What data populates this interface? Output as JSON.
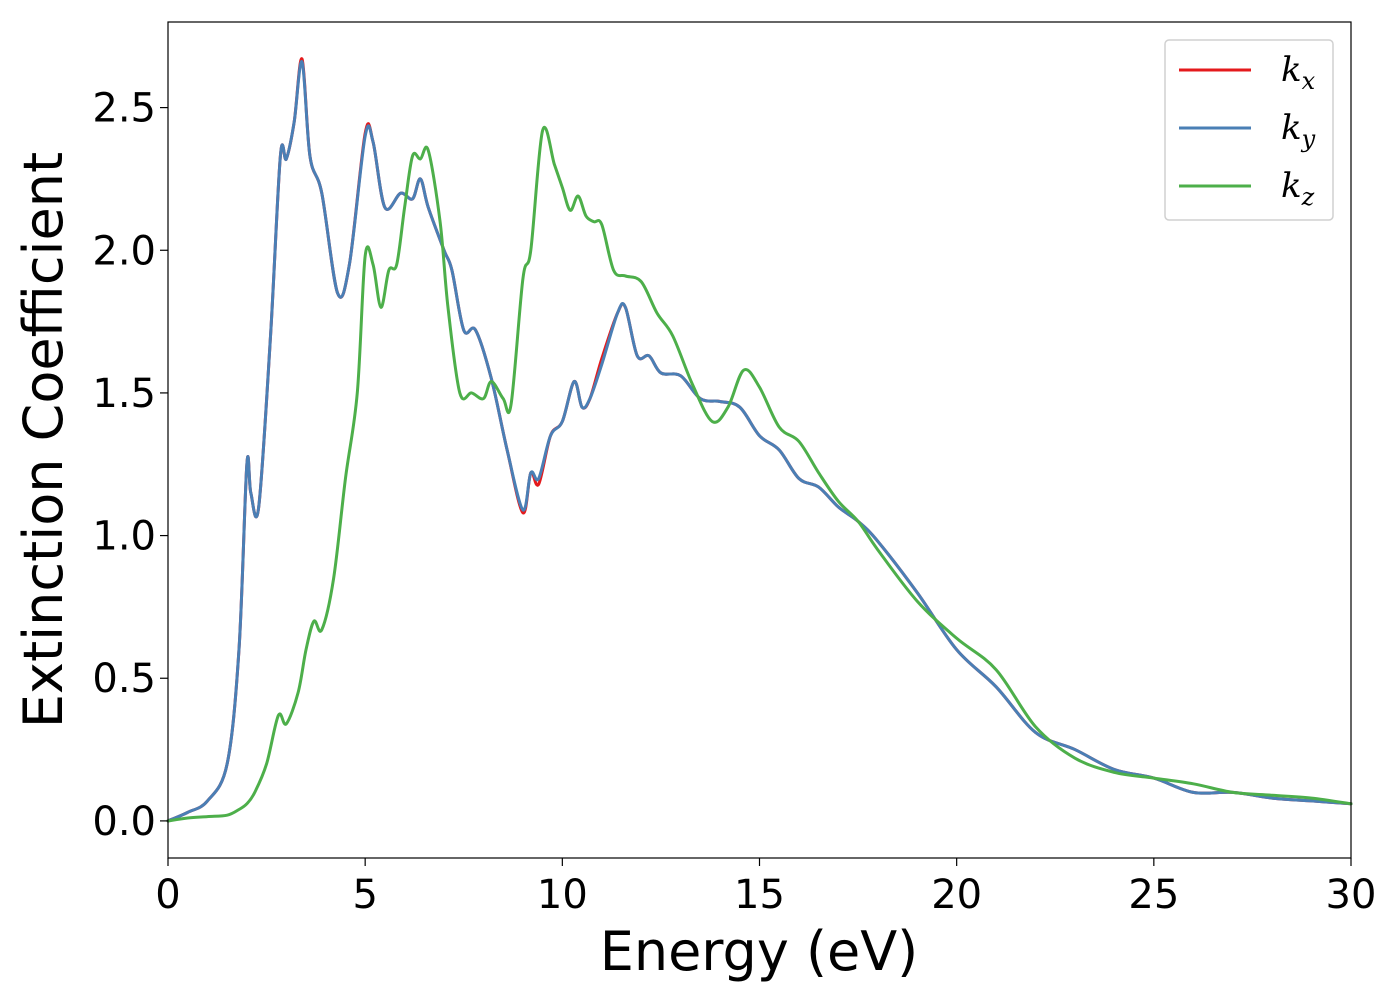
{
  "chart_data": {
    "type": "line",
    "xlabel": "Energy (eV)",
    "ylabel": "Extinction Coefficient",
    "xlim": [
      0,
      30
    ],
    "ylim": [
      -0.13,
      2.8
    ],
    "xticks": [
      0,
      5,
      10,
      15,
      20,
      25,
      30
    ],
    "xtick_labels": [
      "0",
      "5",
      "10",
      "15",
      "20",
      "25",
      "30"
    ],
    "yticks": [
      0.0,
      0.5,
      1.0,
      1.5,
      2.0,
      2.5
    ],
    "ytick_labels": [
      "0.0",
      "0.5",
      "1.0",
      "1.5",
      "2.0",
      "2.5"
    ],
    "grid": false,
    "legend_position": "top-right",
    "series": [
      {
        "name": "k",
        "subscript": "x",
        "color": "#e41a1c",
        "x": [
          0,
          0.5,
          1,
          1.5,
          1.8,
          2.0,
          2.1,
          2.3,
          2.6,
          2.85,
          3.0,
          3.2,
          3.4,
          3.6,
          3.9,
          4.3,
          4.6,
          5.0,
          5.2,
          5.5,
          5.9,
          6.2,
          6.4,
          6.6,
          7.0,
          7.2,
          7.5,
          7.8,
          8.2,
          8.6,
          9.0,
          9.2,
          9.4,
          9.7,
          10.0,
          10.3,
          10.5,
          10.7,
          11.0,
          11.4,
          11.6,
          11.9,
          12.2,
          12.5,
          13.0,
          13.5,
          14.0,
          14.5,
          15.0,
          15.5,
          16.0,
          16.5,
          17.0,
          17.5,
          18.0,
          19.0,
          20.0,
          21.0,
          22.0,
          23.0,
          24.0,
          25.0,
          26.0,
          27.0,
          28.0,
          29.0,
          30.0
        ],
        "y": [
          0.0,
          0.03,
          0.07,
          0.2,
          0.6,
          1.25,
          1.15,
          1.1,
          1.7,
          2.33,
          2.32,
          2.45,
          2.67,
          2.33,
          2.2,
          1.85,
          1.95,
          2.41,
          2.38,
          2.15,
          2.2,
          2.18,
          2.25,
          2.15,
          2.0,
          1.93,
          1.72,
          1.72,
          1.55,
          1.3,
          1.08,
          1.22,
          1.18,
          1.35,
          1.4,
          1.54,
          1.45,
          1.48,
          1.62,
          1.78,
          1.8,
          1.63,
          1.63,
          1.57,
          1.56,
          1.48,
          1.47,
          1.45,
          1.35,
          1.3,
          1.2,
          1.17,
          1.1,
          1.05,
          0.98,
          0.8,
          0.6,
          0.47,
          0.31,
          0.25,
          0.18,
          0.15,
          0.1,
          0.1,
          0.08,
          0.07,
          0.06
        ]
      },
      {
        "name": "k",
        "subscript": "y",
        "color": "#4a7fb5",
        "x": [
          0,
          0.5,
          1,
          1.5,
          1.8,
          2.0,
          2.1,
          2.3,
          2.6,
          2.85,
          3.0,
          3.2,
          3.4,
          3.6,
          3.9,
          4.3,
          4.6,
          5.0,
          5.2,
          5.5,
          5.9,
          6.2,
          6.4,
          6.6,
          7.0,
          7.2,
          7.5,
          7.8,
          8.2,
          8.6,
          9.0,
          9.2,
          9.4,
          9.7,
          10.0,
          10.3,
          10.5,
          10.7,
          11.0,
          11.4,
          11.6,
          11.9,
          12.2,
          12.5,
          13.0,
          13.5,
          14.0,
          14.5,
          15.0,
          15.5,
          16.0,
          16.5,
          17.0,
          17.5,
          18.0,
          19.0,
          20.0,
          21.0,
          22.0,
          23.0,
          24.0,
          25.0,
          26.0,
          27.0,
          28.0,
          29.0,
          30.0
        ],
        "y": [
          0.0,
          0.03,
          0.07,
          0.2,
          0.6,
          1.25,
          1.15,
          1.1,
          1.7,
          2.33,
          2.32,
          2.45,
          2.66,
          2.33,
          2.2,
          1.85,
          1.95,
          2.4,
          2.38,
          2.15,
          2.2,
          2.18,
          2.25,
          2.15,
          2.0,
          1.93,
          1.72,
          1.72,
          1.55,
          1.3,
          1.09,
          1.22,
          1.2,
          1.35,
          1.4,
          1.54,
          1.45,
          1.48,
          1.6,
          1.78,
          1.8,
          1.63,
          1.63,
          1.57,
          1.56,
          1.48,
          1.47,
          1.45,
          1.35,
          1.3,
          1.2,
          1.17,
          1.1,
          1.05,
          0.98,
          0.8,
          0.6,
          0.47,
          0.31,
          0.25,
          0.18,
          0.15,
          0.1,
          0.1,
          0.08,
          0.07,
          0.06
        ]
      },
      {
        "name": "k",
        "subscript": "z",
        "color": "#4daf4a",
        "x": [
          0,
          0.5,
          1,
          1.5,
          1.8,
          2.0,
          2.2,
          2.5,
          2.8,
          3.0,
          3.3,
          3.5,
          3.7,
          3.9,
          4.2,
          4.5,
          4.8,
          5.0,
          5.2,
          5.4,
          5.6,
          5.8,
          6.0,
          6.2,
          6.4,
          6.6,
          6.9,
          7.1,
          7.4,
          7.7,
          8.0,
          8.2,
          8.5,
          8.7,
          9.0,
          9.2,
          9.5,
          9.8,
          10.0,
          10.2,
          10.4,
          10.6,
          10.8,
          11.0,
          11.3,
          11.6,
          12.0,
          12.4,
          12.8,
          13.3,
          13.8,
          14.2,
          14.6,
          15.0,
          15.5,
          16.0,
          16.5,
          17.0,
          17.5,
          18.0,
          19.0,
          20.0,
          21.0,
          22.0,
          23.0,
          24.0,
          25.0,
          26.0,
          27.0,
          28.0,
          29.0,
          30.0
        ],
        "y": [
          0.0,
          0.01,
          0.015,
          0.02,
          0.04,
          0.06,
          0.1,
          0.2,
          0.37,
          0.34,
          0.45,
          0.6,
          0.7,
          0.67,
          0.85,
          1.2,
          1.5,
          1.98,
          1.95,
          1.8,
          1.93,
          1.95,
          2.15,
          2.33,
          2.32,
          2.35,
          2.1,
          1.8,
          1.5,
          1.5,
          1.48,
          1.54,
          1.48,
          1.46,
          1.9,
          2.0,
          2.42,
          2.3,
          2.22,
          2.14,
          2.19,
          2.12,
          2.1,
          2.09,
          1.93,
          1.91,
          1.89,
          1.78,
          1.7,
          1.53,
          1.4,
          1.45,
          1.58,
          1.52,
          1.38,
          1.33,
          1.22,
          1.12,
          1.05,
          0.95,
          0.77,
          0.64,
          0.53,
          0.33,
          0.22,
          0.17,
          0.15,
          0.13,
          0.1,
          0.09,
          0.08,
          0.06
        ]
      }
    ]
  }
}
